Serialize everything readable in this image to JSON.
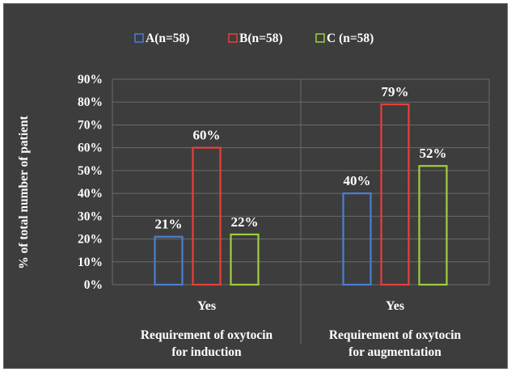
{
  "chart_data": {
    "type": "bar",
    "title": "",
    "ylabel": "% of total number of patient",
    "xlabel": "",
    "ylim": [
      0,
      90
    ],
    "ytick_step": 10,
    "y_tick_labels": [
      "0%",
      "10%",
      "20%",
      "30%",
      "40%",
      "50%",
      "60%",
      "70%",
      "80%",
      "90%"
    ],
    "grid": true,
    "legend_position": "top",
    "groups": [
      {
        "category": "Yes",
        "group_label": "Requirement of oxytocin for induction",
        "group_label_lines": [
          "Requirement of oxytocin",
          "for induction"
        ]
      },
      {
        "category": "Yes",
        "group_label": "Requirement of oxytocin for augmentation",
        "group_label_lines": [
          "Requirement of oxytocin",
          "for augmentation"
        ]
      }
    ],
    "series": [
      {
        "name": "A(n=58)",
        "color": "#4a7fd4",
        "values": [
          21,
          40
        ],
        "data_labels": [
          "21%",
          "40%"
        ]
      },
      {
        "name": "B(n=58)",
        "color": "#e8403a",
        "values": [
          60,
          79
        ],
        "data_labels": [
          "60%",
          "79%"
        ]
      },
      {
        "name": "C (n=58)",
        "color": "#9fcf3c",
        "values": [
          22,
          52
        ],
        "data_labels": [
          "22%",
          "52%"
        ]
      }
    ]
  },
  "colors": {
    "background": "#3d3d3d",
    "gridline": "#6a6a6a",
    "text": "#ffffff"
  }
}
